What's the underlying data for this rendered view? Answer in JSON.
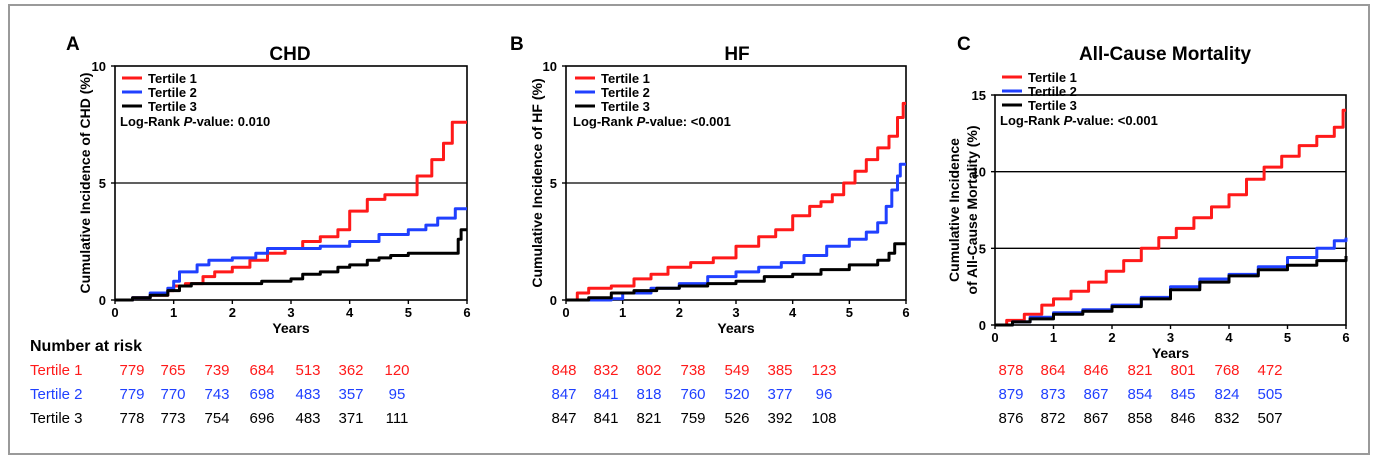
{
  "colors": {
    "tertile1": "#ff1a1a",
    "tertile2": "#2040ff",
    "tertile3": "#000000",
    "frame": "#9a9a9a"
  },
  "chart_data": [
    {
      "panel": "A",
      "type": "line",
      "title": "CHD",
      "xlabel": "Years",
      "ylabel": "Cumulative Incidence of CHD (%)",
      "xlim": [
        0,
        6
      ],
      "ylim": [
        0,
        10
      ],
      "xticks": [
        0,
        1,
        2,
        3,
        4,
        5,
        6
      ],
      "yticks": [
        0,
        5,
        10
      ],
      "hlines": [
        5
      ],
      "legend_position": "top-left",
      "annotation": {
        "prefix": "Log-Rank ",
        "italic": "P",
        "suffix": "-value: 0.010"
      },
      "series": [
        {
          "name": "Tertile 1",
          "color": "#ff1a1a",
          "points": [
            [
              0,
              0
            ],
            [
              0.3,
              0.1
            ],
            [
              0.6,
              0.2
            ],
            [
              0.9,
              0.4
            ],
            [
              1.0,
              0.6
            ],
            [
              1.2,
              0.7
            ],
            [
              1.4,
              0.7
            ],
            [
              1.5,
              1.0
            ],
            [
              1.7,
              1.2
            ],
            [
              2.0,
              1.4
            ],
            [
              2.3,
              1.7
            ],
            [
              2.6,
              2.0
            ],
            [
              2.9,
              2.2
            ],
            [
              3.2,
              2.5
            ],
            [
              3.5,
              2.7
            ],
            [
              3.8,
              3.0
            ],
            [
              4.0,
              3.8
            ],
            [
              4.3,
              4.3
            ],
            [
              4.6,
              4.5
            ],
            [
              5.0,
              4.5
            ],
            [
              5.15,
              5.3
            ],
            [
              5.4,
              6.0
            ],
            [
              5.6,
              6.7
            ],
            [
              5.75,
              7.6
            ],
            [
              6.0,
              7.6
            ]
          ]
        },
        {
          "name": "Tertile 2",
          "color": "#2040ff",
          "points": [
            [
              0,
              0
            ],
            [
              0.3,
              0.1
            ],
            [
              0.6,
              0.3
            ],
            [
              0.9,
              0.5
            ],
            [
              1.0,
              0.8
            ],
            [
              1.1,
              1.2
            ],
            [
              1.4,
              1.5
            ],
            [
              1.6,
              1.7
            ],
            [
              2.0,
              1.8
            ],
            [
              2.4,
              2.0
            ],
            [
              2.6,
              2.2
            ],
            [
              3.0,
              2.2
            ],
            [
              3.5,
              2.3
            ],
            [
              4.0,
              2.5
            ],
            [
              4.5,
              2.8
            ],
            [
              5.0,
              3.0
            ],
            [
              5.3,
              3.2
            ],
            [
              5.5,
              3.5
            ],
            [
              5.8,
              3.9
            ],
            [
              6.0,
              3.9
            ]
          ]
        },
        {
          "name": "Tertile 3",
          "color": "#000000",
          "points": [
            [
              0,
              0
            ],
            [
              0.3,
              0.1
            ],
            [
              0.6,
              0.2
            ],
            [
              0.9,
              0.4
            ],
            [
              1.1,
              0.6
            ],
            [
              1.3,
              0.7
            ],
            [
              2.0,
              0.7
            ],
            [
              2.5,
              0.8
            ],
            [
              3.0,
              0.9
            ],
            [
              3.2,
              1.1
            ],
            [
              3.5,
              1.2
            ],
            [
              3.8,
              1.4
            ],
            [
              4.0,
              1.5
            ],
            [
              4.3,
              1.7
            ],
            [
              4.5,
              1.8
            ],
            [
              4.7,
              1.9
            ],
            [
              5.0,
              2.0
            ],
            [
              5.5,
              2.0
            ],
            [
              5.85,
              2.6
            ],
            [
              5.9,
              3.0
            ],
            [
              6.0,
              3.0
            ]
          ]
        }
      ]
    },
    {
      "panel": "B",
      "type": "line",
      "title": "HF",
      "xlabel": "Years",
      "ylabel": "Cumulative Incidence of HF (%)",
      "xlim": [
        0,
        6
      ],
      "ylim": [
        0,
        10
      ],
      "xticks": [
        0,
        1,
        2,
        3,
        4,
        5,
        6
      ],
      "yticks": [
        0,
        5,
        10
      ],
      "hlines": [
        5
      ],
      "legend_position": "top-left",
      "annotation": {
        "prefix": "Log-Rank ",
        "italic": "P",
        "suffix": "-value: <0.001"
      },
      "series": [
        {
          "name": "Tertile 1",
          "color": "#ff1a1a",
          "points": [
            [
              0,
              0
            ],
            [
              0.2,
              0.3
            ],
            [
              0.4,
              0.5
            ],
            [
              0.8,
              0.6
            ],
            [
              1.2,
              0.9
            ],
            [
              1.5,
              1.1
            ],
            [
              1.8,
              1.4
            ],
            [
              2.2,
              1.6
            ],
            [
              2.6,
              1.8
            ],
            [
              3.0,
              2.3
            ],
            [
              3.4,
              2.7
            ],
            [
              3.7,
              3.0
            ],
            [
              4.0,
              3.6
            ],
            [
              4.3,
              4.0
            ],
            [
              4.5,
              4.2
            ],
            [
              4.7,
              4.5
            ],
            [
              4.9,
              5.0
            ],
            [
              5.1,
              5.5
            ],
            [
              5.3,
              6.0
            ],
            [
              5.5,
              6.5
            ],
            [
              5.7,
              7.0
            ],
            [
              5.85,
              7.8
            ],
            [
              5.95,
              8.4
            ],
            [
              6.0,
              8.4
            ]
          ]
        },
        {
          "name": "Tertile 2",
          "color": "#2040ff",
          "points": [
            [
              0,
              0
            ],
            [
              0.8,
              0.05
            ],
            [
              1.0,
              0.3
            ],
            [
              1.5,
              0.5
            ],
            [
              2.0,
              0.7
            ],
            [
              2.5,
              1.0
            ],
            [
              3.0,
              1.2
            ],
            [
              3.4,
              1.4
            ],
            [
              3.8,
              1.6
            ],
            [
              4.2,
              1.9
            ],
            [
              4.6,
              2.3
            ],
            [
              5.0,
              2.6
            ],
            [
              5.3,
              2.9
            ],
            [
              5.5,
              3.3
            ],
            [
              5.65,
              4.0
            ],
            [
              5.75,
              4.7
            ],
            [
              5.85,
              5.3
            ],
            [
              5.9,
              5.8
            ],
            [
              6.0,
              5.8
            ]
          ]
        },
        {
          "name": "Tertile 3",
          "color": "#000000",
          "points": [
            [
              0,
              0
            ],
            [
              0.4,
              0.1
            ],
            [
              0.8,
              0.3
            ],
            [
              1.2,
              0.4
            ],
            [
              1.6,
              0.5
            ],
            [
              2.0,
              0.6
            ],
            [
              2.5,
              0.7
            ],
            [
              3.0,
              0.8
            ],
            [
              3.5,
              1.0
            ],
            [
              4.0,
              1.1
            ],
            [
              4.5,
              1.3
            ],
            [
              5.0,
              1.5
            ],
            [
              5.5,
              1.7
            ],
            [
              5.7,
              2.0
            ],
            [
              5.8,
              2.4
            ],
            [
              6.0,
              2.4
            ]
          ]
        }
      ]
    },
    {
      "panel": "C",
      "type": "line",
      "title": "All-Cause Mortality",
      "xlabel": "Years",
      "ylabel": [
        "Cumulative Incidence",
        "of All-Cause Mortality (%)"
      ],
      "xlim": [
        0,
        6
      ],
      "ylim": [
        0,
        15
      ],
      "xticks": [
        0,
        1,
        2,
        3,
        4,
        5,
        6
      ],
      "yticks": [
        0,
        5,
        10,
        15
      ],
      "hlines": [
        5,
        10
      ],
      "legend_position": "top-left",
      "annotation": {
        "prefix": "Log-Rank ",
        "italic": "P",
        "suffix": "-value: <0.001"
      },
      "series": [
        {
          "name": "Tertile 1",
          "color": "#ff1a1a",
          "points": [
            [
              0,
              0
            ],
            [
              0.2,
              0.3
            ],
            [
              0.5,
              0.7
            ],
            [
              0.8,
              1.3
            ],
            [
              1.0,
              1.7
            ],
            [
              1.3,
              2.2
            ],
            [
              1.6,
              2.8
            ],
            [
              1.9,
              3.5
            ],
            [
              2.2,
              4.2
            ],
            [
              2.5,
              5.0
            ],
            [
              2.8,
              5.7
            ],
            [
              3.1,
              6.3
            ],
            [
              3.4,
              7.0
            ],
            [
              3.7,
              7.7
            ],
            [
              4.0,
              8.5
            ],
            [
              4.3,
              9.5
            ],
            [
              4.6,
              10.3
            ],
            [
              4.9,
              11.0
            ],
            [
              5.2,
              11.7
            ],
            [
              5.5,
              12.3
            ],
            [
              5.8,
              12.9
            ],
            [
              5.95,
              14.0
            ],
            [
              6.0,
              14.0
            ]
          ]
        },
        {
          "name": "Tertile 2",
          "color": "#2040ff",
          "points": [
            [
              0,
              0
            ],
            [
              0.3,
              0.2
            ],
            [
              0.6,
              0.5
            ],
            [
              1.0,
              0.8
            ],
            [
              1.5,
              1.0
            ],
            [
              2.0,
              1.3
            ],
            [
              2.5,
              1.8
            ],
            [
              3.0,
              2.5
            ],
            [
              3.5,
              3.0
            ],
            [
              4.0,
              3.3
            ],
            [
              4.5,
              3.8
            ],
            [
              5.0,
              4.4
            ],
            [
              5.5,
              5.0
            ],
            [
              5.8,
              5.5
            ],
            [
              6.0,
              5.7
            ]
          ]
        },
        {
          "name": "Tertile 3",
          "color": "#000000",
          "points": [
            [
              0,
              0
            ],
            [
              0.3,
              0.2
            ],
            [
              0.6,
              0.4
            ],
            [
              1.0,
              0.7
            ],
            [
              1.5,
              0.9
            ],
            [
              2.0,
              1.2
            ],
            [
              2.5,
              1.7
            ],
            [
              3.0,
              2.3
            ],
            [
              3.5,
              2.8
            ],
            [
              4.0,
              3.2
            ],
            [
              4.5,
              3.6
            ],
            [
              5.0,
              3.9
            ],
            [
              5.5,
              4.2
            ],
            [
              6.0,
              4.5
            ]
          ]
        }
      ]
    }
  ],
  "risk_table": {
    "title": "Number at risk",
    "rows": [
      {
        "label": "Tertile 1",
        "color": "#ff1a1a",
        "A": [
          "779",
          "765",
          "739",
          "684",
          "513",
          "362",
          "120"
        ],
        "B": [
          "848",
          "832",
          "802",
          "738",
          "549",
          "385",
          "123"
        ],
        "C": [
          "878",
          "864",
          "846",
          "821",
          "801",
          "768",
          "472"
        ]
      },
      {
        "label": "Tertile 2",
        "color": "#2040ff",
        "A": [
          "779",
          "770",
          "743",
          "698",
          "483",
          "357",
          "95"
        ],
        "B": [
          "847",
          "841",
          "818",
          "760",
          "520",
          "377",
          "96"
        ],
        "C": [
          "879",
          "873",
          "867",
          "854",
          "845",
          "824",
          "505"
        ]
      },
      {
        "label": "Tertile 3",
        "color": "#000000",
        "A": [
          "778",
          "773",
          "754",
          "696",
          "483",
          "371",
          "111"
        ],
        "B": [
          "847",
          "841",
          "821",
          "759",
          "526",
          "392",
          "108"
        ],
        "C": [
          "876",
          "872",
          "867",
          "858",
          "846",
          "832",
          "507"
        ]
      }
    ]
  }
}
